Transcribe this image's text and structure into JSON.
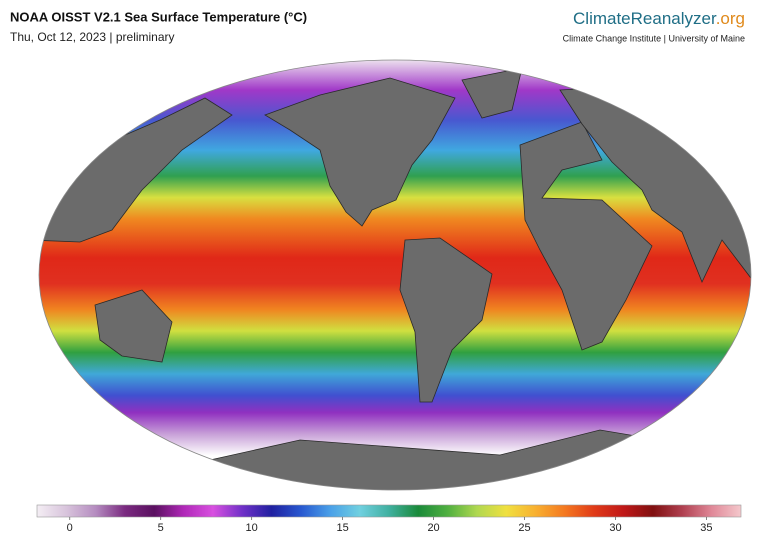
{
  "header": {
    "title": "NOAA OISST V2.1 Sea Surface Temperature (°C)",
    "date": "Thu, Oct 12, 2023 | preliminary",
    "brand": {
      "name": "ClimateReanalyzer",
      "suffix": ".org",
      "affiliation": "Climate Change Institute | University of Maine"
    }
  },
  "colorbar": {
    "range": [
      -1.8,
      36.9
    ],
    "ticks": [
      0,
      5,
      10,
      15,
      20,
      25,
      30,
      35
    ],
    "colors": [
      "#f4eef4",
      "#d8c4dc",
      "#b58cc0",
      "#7a2a80",
      "#5a1060",
      "#b028b8",
      "#d850e0",
      "#7030c8",
      "#2020a0",
      "#2858d0",
      "#4aa0e8",
      "#70d0e0",
      "#40b0a0",
      "#1a8a3a",
      "#50b040",
      "#b0d850",
      "#f0e040",
      "#f8b030",
      "#f47820",
      "#e03a18",
      "#c01818",
      "#801010",
      "#b04050",
      "#e08898",
      "#f4c8cc"
    ]
  }
}
